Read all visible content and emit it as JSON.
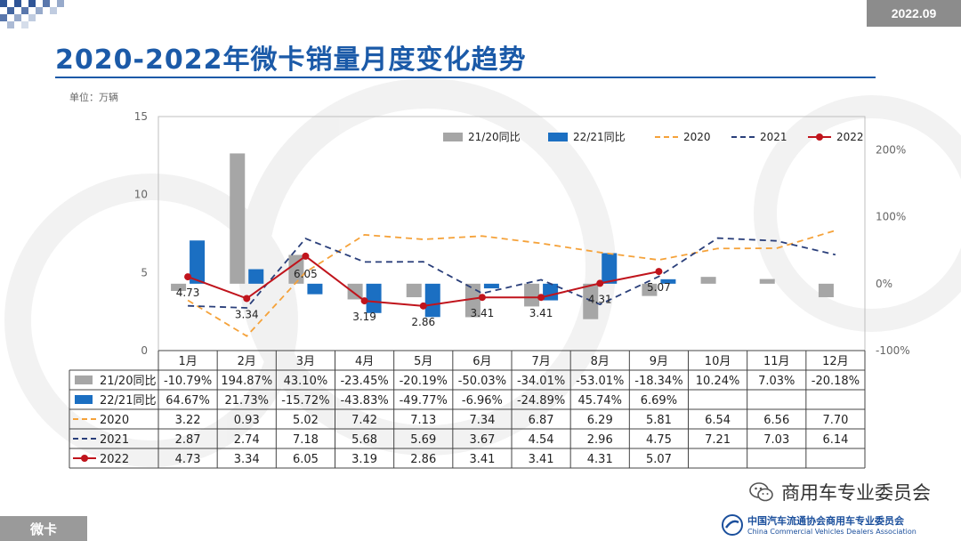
{
  "header": {
    "date_badge": "2022.09",
    "title": "2020-2022年微卡销量月度变化趋势",
    "unit": "单位：万辆"
  },
  "footer": {
    "section_label": "微卡",
    "brand": "商用车专业委员会",
    "assoc_cn": "中国汽车流通协会商用车专业委员会",
    "assoc_en": "China Commercial Vehicles Dealers Association"
  },
  "chart_data": {
    "type": "bar",
    "categories": [
      "1月",
      "2月",
      "3月",
      "4月",
      "5月",
      "6月",
      "7月",
      "8月",
      "9月",
      "10月",
      "11月",
      "12月"
    ],
    "y_left": {
      "min": 0,
      "max": 15,
      "ticks": [
        "0",
        "5",
        "10",
        "15"
      ]
    },
    "y_right": {
      "min": -100,
      "max": 250,
      "ticks": [
        "-100%",
        "0%",
        "100%",
        "200%"
      ]
    },
    "grid": false,
    "legend_position": "top-right",
    "bar_series": [
      {
        "name": "21/20同比",
        "color": "#a6a6a6",
        "values": [
          -10.79,
          194.87,
          43.1,
          -23.45,
          -20.19,
          -50.03,
          -34.01,
          -53.01,
          -18.34,
          10.24,
          7.03,
          -20.18
        ],
        "labels": [
          "-10.79%",
          "194.87%",
          "43.10%",
          "-23.45%",
          "-20.19%",
          "-50.03%",
          "-34.01%",
          "-53.01%",
          "-18.34%",
          "10.24%",
          "7.03%",
          "-20.18%"
        ]
      },
      {
        "name": "22/21同比",
        "color": "#1b6fc2",
        "values": [
          64.67,
          21.73,
          -15.72,
          -43.83,
          -49.77,
          -6.96,
          -24.89,
          45.74,
          6.69,
          null,
          null,
          null
        ],
        "labels": [
          "64.67%",
          "21.73%",
          "-15.72%",
          "-43.83%",
          "-49.77%",
          "-6.96%",
          "-24.89%",
          "45.74%",
          "6.69%",
          "",
          "",
          ""
        ]
      }
    ],
    "line_series": [
      {
        "name": "2020",
        "color": "#f5a23a",
        "dash": true,
        "values": [
          3.22,
          0.93,
          5.02,
          7.42,
          7.13,
          7.34,
          6.87,
          6.29,
          5.81,
          6.54,
          6.56,
          7.7
        ],
        "labels": [
          "3.22",
          "0.93",
          "5.02",
          "7.42",
          "7.13",
          "7.34",
          "6.87",
          "6.29",
          "5.81",
          "6.54",
          "6.56",
          "7.70"
        ]
      },
      {
        "name": "2021",
        "color": "#2a3f7a",
        "dash": true,
        "values": [
          2.87,
          2.74,
          7.18,
          5.68,
          5.69,
          3.67,
          4.54,
          2.96,
          4.75,
          7.21,
          7.03,
          6.14
        ],
        "labels": [
          "2.87",
          "2.74",
          "7.18",
          "5.68",
          "5.69",
          "3.67",
          "4.54",
          "2.96",
          "4.75",
          "7.21",
          "7.03",
          "6.14"
        ]
      },
      {
        "name": "2022",
        "color": "#c0141c",
        "dash": false,
        "markers": true,
        "values": [
          4.73,
          3.34,
          6.05,
          3.19,
          2.86,
          3.41,
          3.41,
          4.31,
          5.07,
          null,
          null,
          null
        ],
        "labels": [
          "4.73",
          "3.34",
          "6.05",
          "3.19",
          "2.86",
          "3.41",
          "3.41",
          "4.31",
          "5.07",
          "",
          "",
          ""
        ]
      }
    ]
  }
}
